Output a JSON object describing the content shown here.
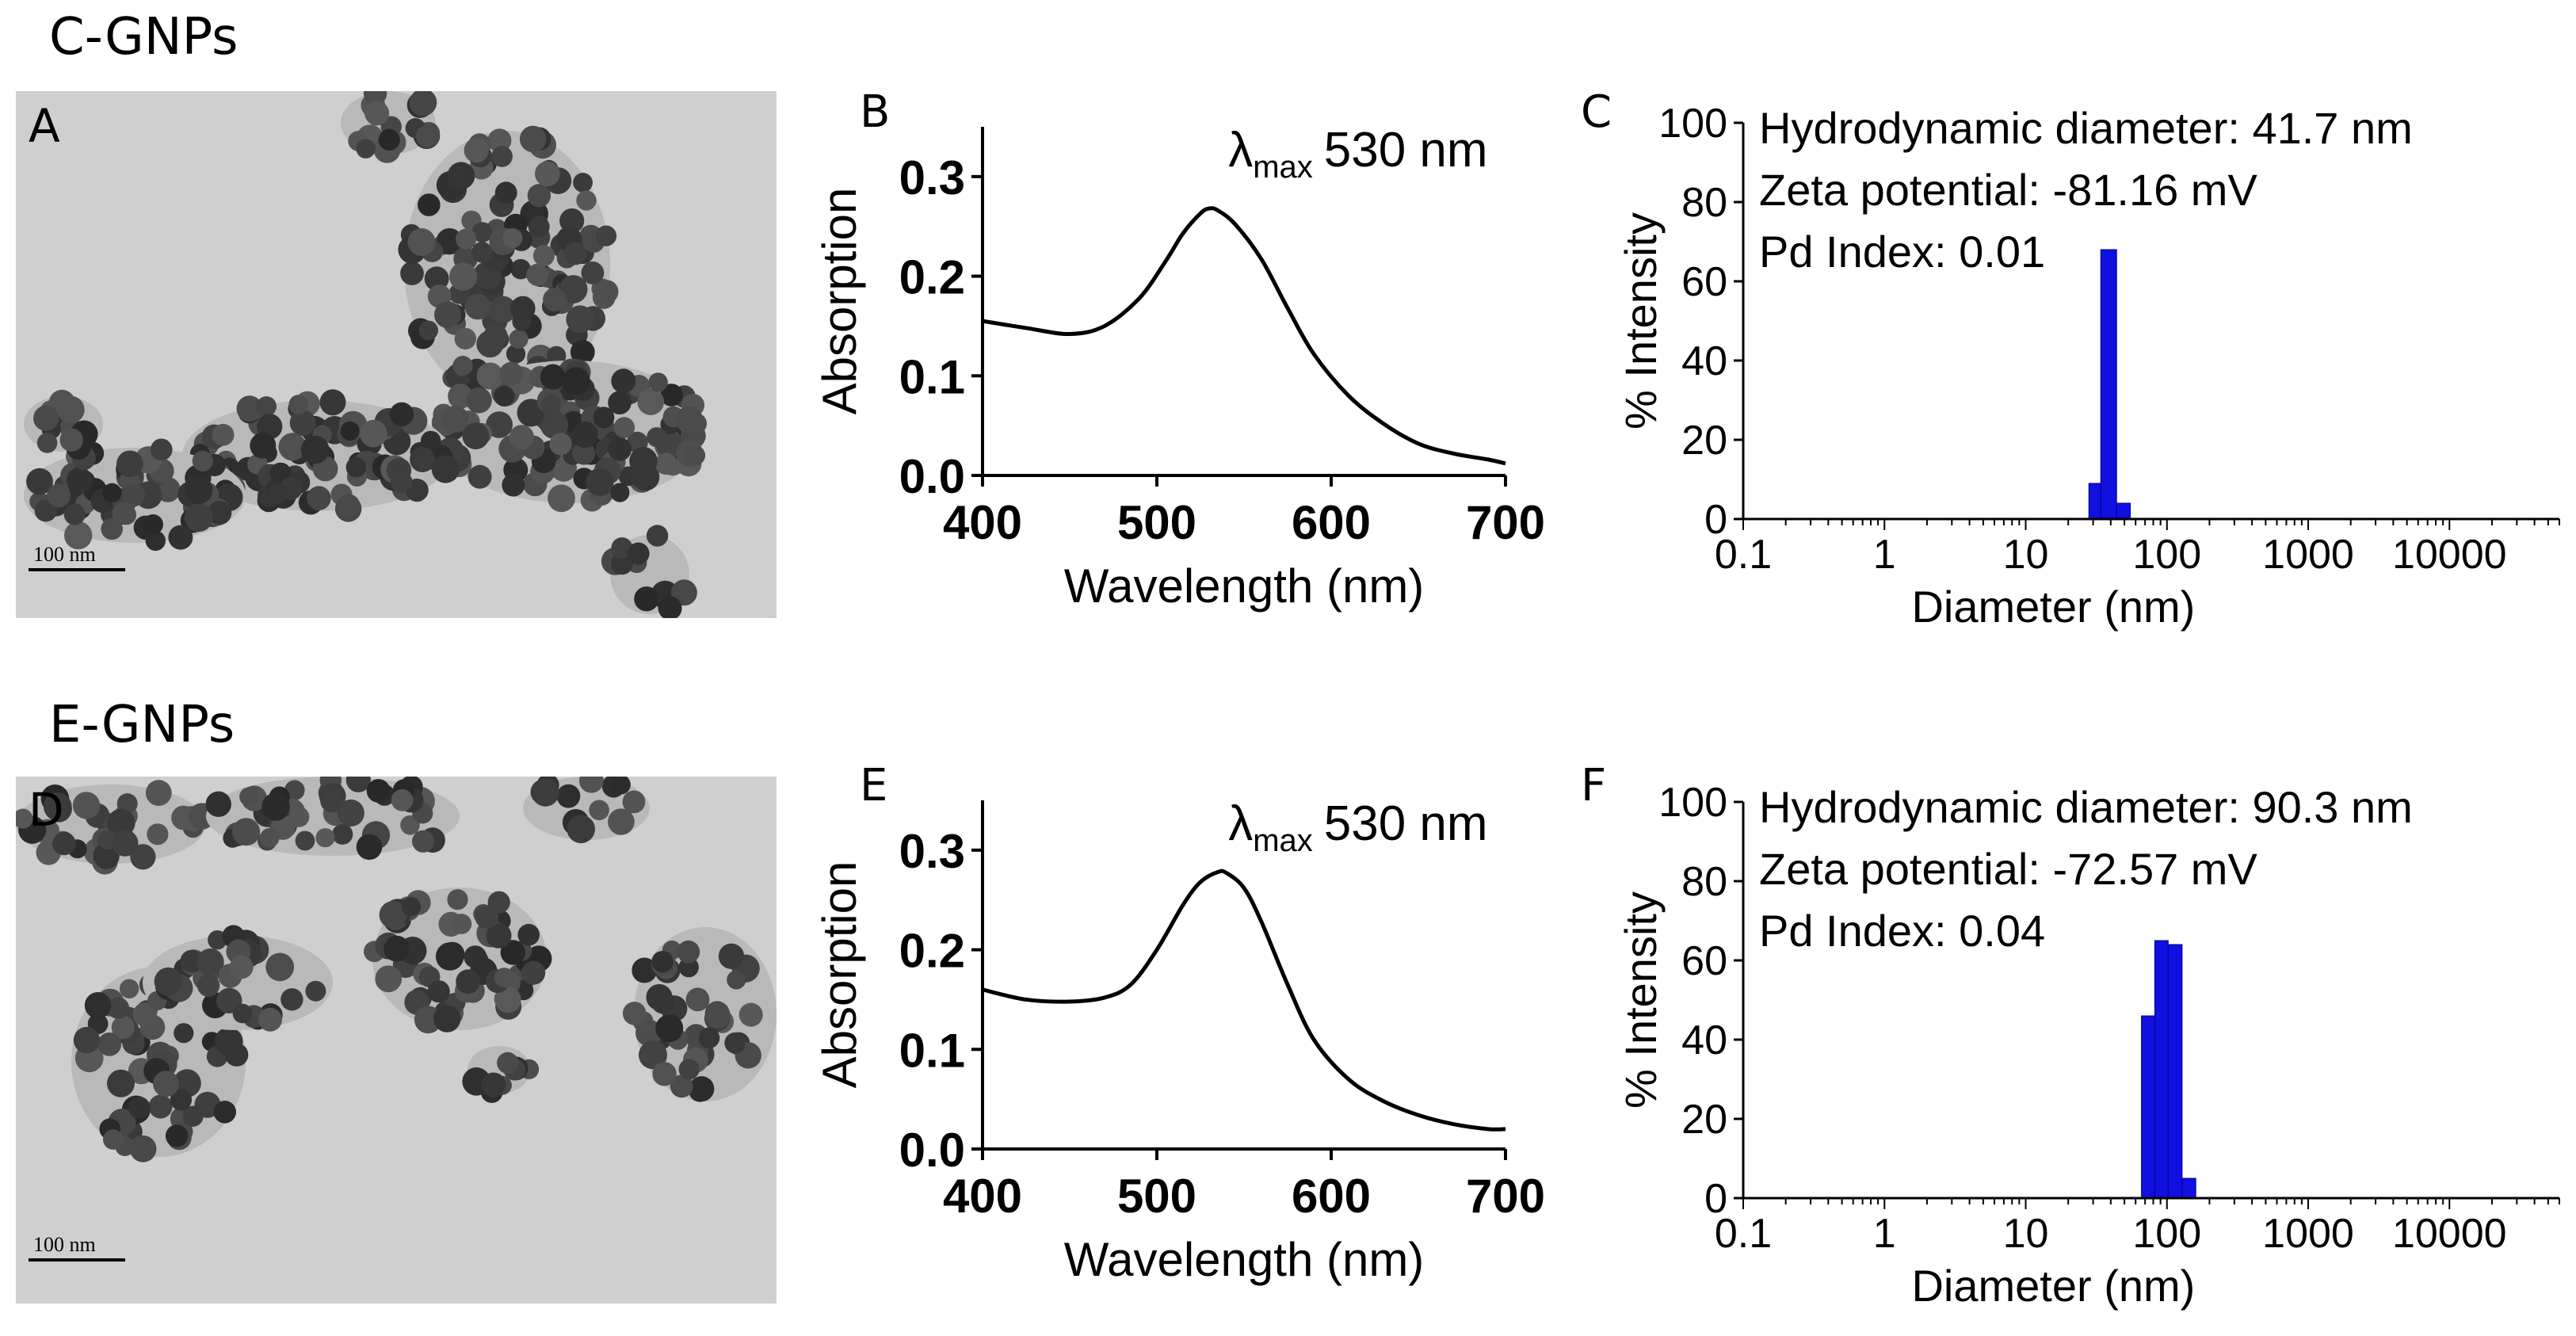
{
  "rows": [
    {
      "title": "C-GNPs",
      "tem": {
        "label": "A",
        "scale_text": "100 nm"
      },
      "chart_data": [
        {
          "panel": "B",
          "type": "line",
          "title": "",
          "xlabel": "Wavelength (nm)",
          "ylabel": "Absorption",
          "xlim": [
            400,
            700
          ],
          "ylim": [
            0,
            0.35
          ],
          "xticks": [
            400,
            500,
            600,
            700
          ],
          "yticks": [
            0.0,
            0.1,
            0.2,
            0.3
          ],
          "xtick_labels": [
            "400",
            "500",
            "600",
            "700"
          ],
          "ytick_labels": [
            "0.0",
            "0.1",
            "0.2",
            "0.3"
          ],
          "annotation": {
            "symbol": "λ",
            "sub": "max",
            "text": "530 nm"
          },
          "series": [
            {
              "name": "C-GNPs",
              "x": [
                400,
                425,
                450,
                470,
                490,
                505,
                515,
                525,
                530,
                535,
                545,
                560,
                575,
                590,
                610,
                630,
                650,
                670,
                690,
                700
              ],
              "y": [
                0.155,
                0.148,
                0.142,
                0.15,
                0.178,
                0.215,
                0.243,
                0.263,
                0.268,
                0.266,
                0.252,
                0.217,
                0.168,
                0.122,
                0.08,
                0.052,
                0.032,
                0.022,
                0.016,
                0.012
              ]
            }
          ]
        },
        {
          "panel": "C",
          "type": "bar",
          "xscale": "log",
          "xlabel": "Diameter (nm)",
          "ylabel": "% Intensity",
          "xlim": [
            0.1,
            60000
          ],
          "ylim": [
            0,
            100
          ],
          "xtick_labels": [
            "0.1",
            "1",
            "10",
            "100",
            "1000",
            "10000"
          ],
          "xticks": [
            0.1,
            1,
            10,
            100,
            1000,
            10000
          ],
          "ytick_labels": [
            "0",
            "20",
            "40",
            "60",
            "80",
            "100"
          ],
          "yticks": [
            0,
            20,
            40,
            60,
            80,
            100
          ],
          "annotations": [
            "Hydrodynamic diameter: 41.7 nm",
            "Zeta potential: -81.16 mV",
            "Pd Index: 0.01"
          ],
          "bars": [
            {
              "x0": 28,
              "x1": 34,
              "value": 9
            },
            {
              "x0": 34,
              "x1": 44,
              "value": 68
            },
            {
              "x0": 44,
              "x1": 55,
              "value": 4
            }
          ],
          "bar_color": "#1010e0"
        }
      ]
    },
    {
      "title": "E-GNPs",
      "tem": {
        "label": "D",
        "scale_text": "100 nm"
      },
      "chart_data": [
        {
          "panel": "E",
          "type": "line",
          "title": "",
          "xlabel": "Wavelength (nm)",
          "ylabel": "Absorption",
          "xlim": [
            400,
            700
          ],
          "ylim": [
            0,
            0.35
          ],
          "xticks": [
            400,
            500,
            600,
            700
          ],
          "yticks": [
            0.0,
            0.1,
            0.2,
            0.3
          ],
          "xtick_labels": [
            "400",
            "500",
            "600",
            "700"
          ],
          "ytick_labels": [
            "0.0",
            "0.1",
            "0.2",
            "0.3"
          ],
          "annotation": {
            "symbol": "λ",
            "sub": "max",
            "text": "530 nm"
          },
          "series": [
            {
              "name": "E-GNPs",
              "x": [
                400,
                425,
                450,
                470,
                485,
                500,
                515,
                525,
                535,
                540,
                550,
                560,
                575,
                590,
                610,
                630,
                650,
                670,
                690,
                700
              ],
              "y": [
                0.16,
                0.15,
                0.148,
                0.152,
                0.165,
                0.2,
                0.245,
                0.268,
                0.278,
                0.277,
                0.262,
                0.228,
                0.165,
                0.11,
                0.07,
                0.048,
                0.034,
                0.025,
                0.02,
                0.02
              ]
            }
          ]
        },
        {
          "panel": "F",
          "type": "bar",
          "xscale": "log",
          "xlabel": "Diameter (nm)",
          "ylabel": "% Intensity",
          "xlim": [
            0.1,
            60000
          ],
          "ylim": [
            0,
            100
          ],
          "xtick_labels": [
            "0.1",
            "1",
            "10",
            "100",
            "1000",
            "10000"
          ],
          "xticks": [
            0.1,
            1,
            10,
            100,
            1000,
            10000
          ],
          "ytick_labels": [
            "0",
            "20",
            "40",
            "60",
            "80",
            "100"
          ],
          "yticks": [
            0,
            20,
            40,
            60,
            80,
            100
          ],
          "annotations": [
            "Hydrodynamic diameter: 90.3 nm",
            "Zeta potential: -72.57 mV",
            "Pd Index: 0.04"
          ],
          "bars": [
            {
              "x0": 66,
              "x1": 82,
              "value": 46
            },
            {
              "x0": 82,
              "x1": 102,
              "value": 65
            },
            {
              "x0": 102,
              "x1": 128,
              "value": 64
            },
            {
              "x0": 128,
              "x1": 160,
              "value": 5
            }
          ],
          "bar_color": "#1010e0"
        }
      ]
    }
  ]
}
